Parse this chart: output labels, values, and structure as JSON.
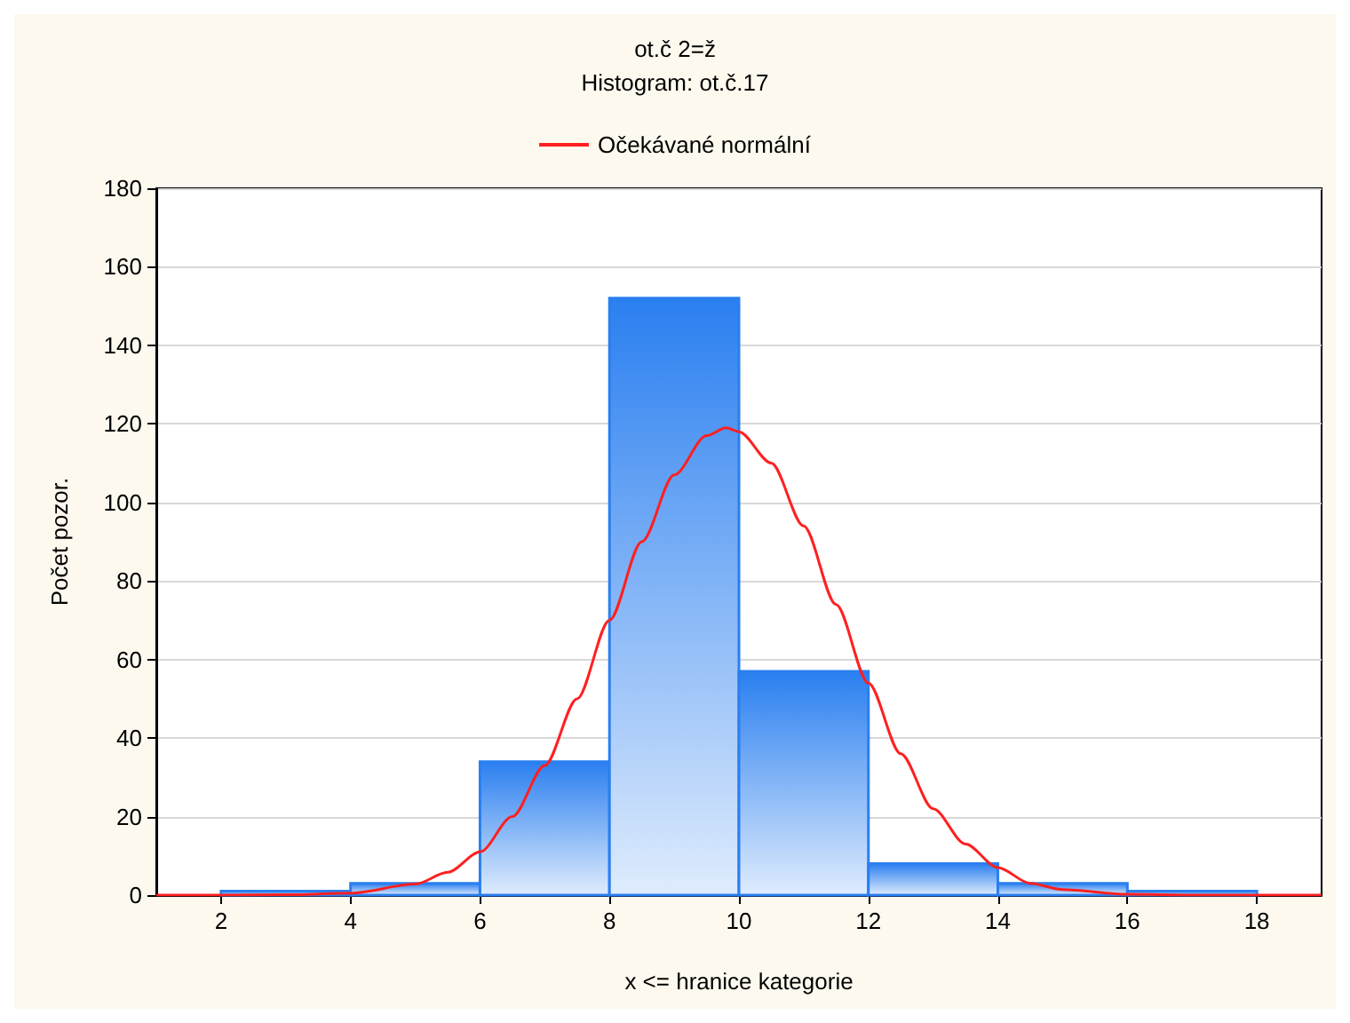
{
  "chart_data": {
    "type": "histogram",
    "title": "ot.č 2=ž",
    "subtitle": "Histogram: ot.č.17",
    "xlabel": "x <= hranice kategorie",
    "ylabel": "Počet pozor.",
    "bins": [
      2,
      4,
      6,
      8,
      10,
      12,
      14,
      16,
      18
    ],
    "values": [
      1,
      3,
      34,
      152,
      57,
      8,
      3,
      1
    ],
    "color": "#2a7ff0",
    "series": [
      {
        "type": "line",
        "name": "Očekávané normální",
        "color": "#ff2020",
        "x": [
          1,
          2,
          3,
          4,
          5,
          5.5,
          6,
          6.5,
          7,
          7.5,
          8,
          8.5,
          9,
          9.5,
          9.8,
          10,
          10.5,
          11,
          11.5,
          12,
          12.5,
          13,
          13.5,
          14,
          14.5,
          15,
          16,
          17,
          18,
          19
        ],
        "values": [
          0,
          0,
          0.1,
          0.5,
          2.8,
          5.8,
          11,
          20,
          33,
          50,
          70,
          90,
          107,
          117,
          119,
          118,
          110,
          94,
          74,
          54,
          36,
          22,
          13,
          7,
          3,
          1.4,
          0.2,
          0,
          0,
          0
        ]
      }
    ],
    "xlim": [
      1,
      19
    ],
    "xticks": [
      2,
      4,
      6,
      8,
      10,
      12,
      14,
      16,
      18
    ],
    "ylim": [
      0,
      180
    ],
    "yticks": [
      0,
      20,
      40,
      60,
      80,
      100,
      120,
      140,
      160,
      180
    ],
    "grid": "y",
    "legend": "top"
  }
}
